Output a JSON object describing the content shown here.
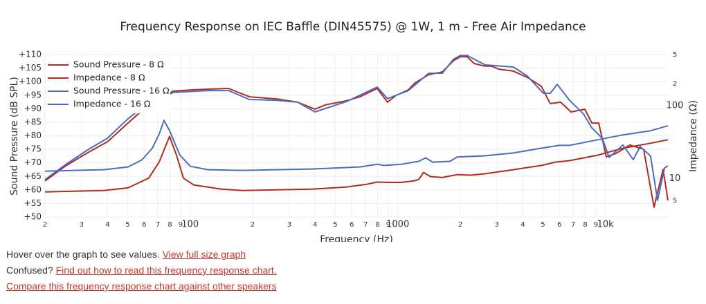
{
  "chart_data": {
    "type": "line",
    "title": "Frequency Response on IEC Baffle (DIN45575) @ 1W, 1 m - Free Air Impedance",
    "x_label": "Frequency (Hz)",
    "y_label": "Sound Pressure (dB SPL)",
    "y2_label": "Impedance (Ω)",
    "xlog": true,
    "y2log": true,
    "grid": true,
    "legend": "top-left",
    "xlim": [
      20,
      20000
    ],
    "xticks": [
      {
        "value": 20,
        "label": "2"
      },
      {
        "value": 30,
        "label": "3"
      },
      {
        "value": 40,
        "label": "4"
      },
      {
        "value": 50,
        "label": "5"
      },
      {
        "value": 60,
        "label": "6"
      },
      {
        "value": 70,
        "label": "7"
      },
      {
        "value": 80,
        "label": "8"
      },
      {
        "value": 90,
        "label": "9"
      },
      100,
      {
        "value": 200,
        "label": "2"
      },
      {
        "value": 300,
        "label": "3"
      },
      {
        "value": 400,
        "label": "4"
      },
      {
        "value": 500,
        "label": "5"
      },
      {
        "value": 600,
        "label": "6"
      },
      {
        "value": 700,
        "label": "7"
      },
      {
        "value": 800,
        "label": "8"
      },
      {
        "value": 900,
        "label": "9"
      },
      1000,
      {
        "value": 2000,
        "label": "2"
      },
      {
        "value": 3000,
        "label": "3"
      },
      {
        "value": 4000,
        "label": "4"
      },
      {
        "value": 5000,
        "label": "5"
      },
      {
        "value": 6000,
        "label": "6"
      },
      {
        "value": 7000,
        "label": "7"
      },
      {
        "value": 8000,
        "label": "8"
      },
      {
        "value": 9000,
        "label": "9"
      },
      {
        "value": 10000,
        "label": "10k"
      }
    ],
    "ylim": [
      50,
      110
    ],
    "yticks": [
      {
        "value": 50,
        "label": "+50"
      },
      {
        "value": 55,
        "label": "+55"
      },
      {
        "value": 60,
        "label": "+60"
      },
      {
        "value": 65,
        "label": "+65"
      },
      {
        "value": 70,
        "label": "+70"
      },
      {
        "value": 75,
        "label": "+75"
      },
      {
        "value": 80,
        "label": "+80"
      },
      {
        "value": 85,
        "label": "+85"
      },
      {
        "value": 90,
        "label": "+90"
      },
      {
        "value": 95,
        "label": "+95"
      },
      {
        "value": 100,
        "label": "+100"
      },
      {
        "value": 105,
        "label": "+105"
      },
      {
        "value": 110,
        "label": "+110"
      }
    ],
    "y2lim": [
      3,
      500
    ],
    "y2ticks": [
      {
        "value": 500,
        "label": "5"
      },
      {
        "value": 200,
        "label": "2"
      },
      100,
      10,
      5
    ],
    "series": [
      {
        "name": "Sound Pressure - 8 Ω",
        "color": "#b22a1e",
        "x": [
          20,
          25.2,
          31.7,
          40,
          50.2,
          58.6,
          82.8,
          104.2,
          121.5,
          153,
          193,
          262,
          329.4,
          399,
          448,
          564,
          657,
          796,
          893,
          980,
          1125,
          1210,
          1410,
          1640,
          1851,
          2000,
          2158,
          2331,
          2630,
          2825,
          3080,
          3600,
          4200,
          4910,
          5424,
          6087,
          6831,
          7962,
          8597,
          9284,
          10100,
          11250,
          13110,
          15280,
          17140,
          18950,
          20000
        ],
        "values": [
          63.3,
          68.9,
          73.5,
          77.8,
          84.7,
          89.3,
          96.5,
          97,
          97.2,
          97.5,
          94.4,
          93.6,
          92.4,
          89.8,
          91.4,
          92.9,
          94.4,
          97.5,
          92.4,
          94.9,
          97,
          99.5,
          102.6,
          103.6,
          107.7,
          109.2,
          109.2,
          106.7,
          105.7,
          105.7,
          104.6,
          103.9,
          101.6,
          98.3,
          91.9,
          92.4,
          88.8,
          89.8,
          84.7,
          84.7,
          72.2,
          73.5,
          76.6,
          75,
          53.6,
          67.6,
          56.1
        ]
      },
      {
        "name": "Impedance - 8 Ω",
        "color": "#b22a1e",
        "axis": "y2",
        "x": [
          20,
          38.4,
          50.2,
          63.2,
          70.9,
          79.6,
          86,
          92.8,
          104.2,
          141.6,
          178.3,
          385,
          564,
          709,
          796,
          893,
          1042,
          1210,
          1262,
          1331,
          1438,
          1640,
          1930,
          2250,
          2630,
          3600,
          4910,
          5750,
          6720,
          9180,
          12140,
          16500,
          20000
        ],
        "values": [
          6.6,
          6.9,
          7.5,
          10.2,
          16.9,
          38,
          21,
          10.2,
          8.2,
          7.2,
          6.9,
          7.2,
          7.7,
          8.4,
          9,
          8.9,
          8.9,
          9.4,
          9.8,
          12.2,
          10.7,
          10.4,
          11.4,
          11.2,
          11.7,
          13.3,
          15.2,
          16.9,
          17.7,
          21,
          26.2,
          30.6,
          34.1
        ]
      },
      {
        "name": "Sound Pressure - 16 Ω",
        "color": "#4a6cc0",
        "x": [
          20,
          25.2,
          31.7,
          40,
          50.2,
          58.6,
          82.8,
          121.5,
          153,
          193,
          262,
          329.4,
          399,
          564,
          796,
          893,
          1125,
          1410,
          1640,
          1851,
          2000,
          2158,
          2630,
          3600,
          4200,
          5024,
          5424,
          5857,
          6720,
          7850,
          8597,
          9648,
          10420,
          12140,
          13620,
          14700,
          16500,
          17830,
          19260,
          20000
        ],
        "values": [
          63.8,
          69.4,
          74.5,
          79.1,
          86.3,
          90.3,
          96,
          96.7,
          96.7,
          93.4,
          93.1,
          92.4,
          88.8,
          92.6,
          98,
          93.7,
          96.7,
          103.1,
          103.1,
          108.2,
          109.7,
          109.7,
          106.2,
          105.4,
          102.1,
          95.7,
          95.7,
          99,
          93.1,
          88,
          82.9,
          79.1,
          72,
          76.6,
          71.2,
          76,
          72.5,
          56.1,
          68.1,
          68.9
        ]
      },
      {
        "name": "Impedance - 16 Ω",
        "color": "#4a6cc0",
        "axis": "y2",
        "x": [
          20,
          38.4,
          50.2,
          58.6,
          65.7,
          70.9,
          74.9,
          79.6,
          89.3,
          100.2,
          121.5,
          178.3,
          385,
          657,
          796,
          860,
          1042,
          1262,
          1362,
          1471,
          1783,
          1930,
          2630,
          3600,
          4910,
          5994,
          6720,
          9180,
          12140,
          16500,
          20000
        ],
        "values": [
          12.7,
          13.3,
          14.5,
          18.1,
          26.2,
          40.7,
          63,
          45.4,
          21,
          14.8,
          13.3,
          13,
          13.6,
          14.5,
          15.8,
          15.2,
          15.8,
          17.3,
          19.3,
          16.9,
          17.3,
          19.8,
          20.6,
          22.5,
          26.2,
          28.6,
          28.6,
          34.1,
          39.8,
          45.4,
          53
        ]
      }
    ]
  },
  "footer": {
    "line1": {
      "text": "Hover over the graph to see values.",
      "link": "View full size graph"
    },
    "line2": {
      "text": "Confused?",
      "link": "Find out how to read this frequency response chart."
    },
    "line3": {
      "link": "Compare this frequency response chart against other speakers"
    }
  }
}
